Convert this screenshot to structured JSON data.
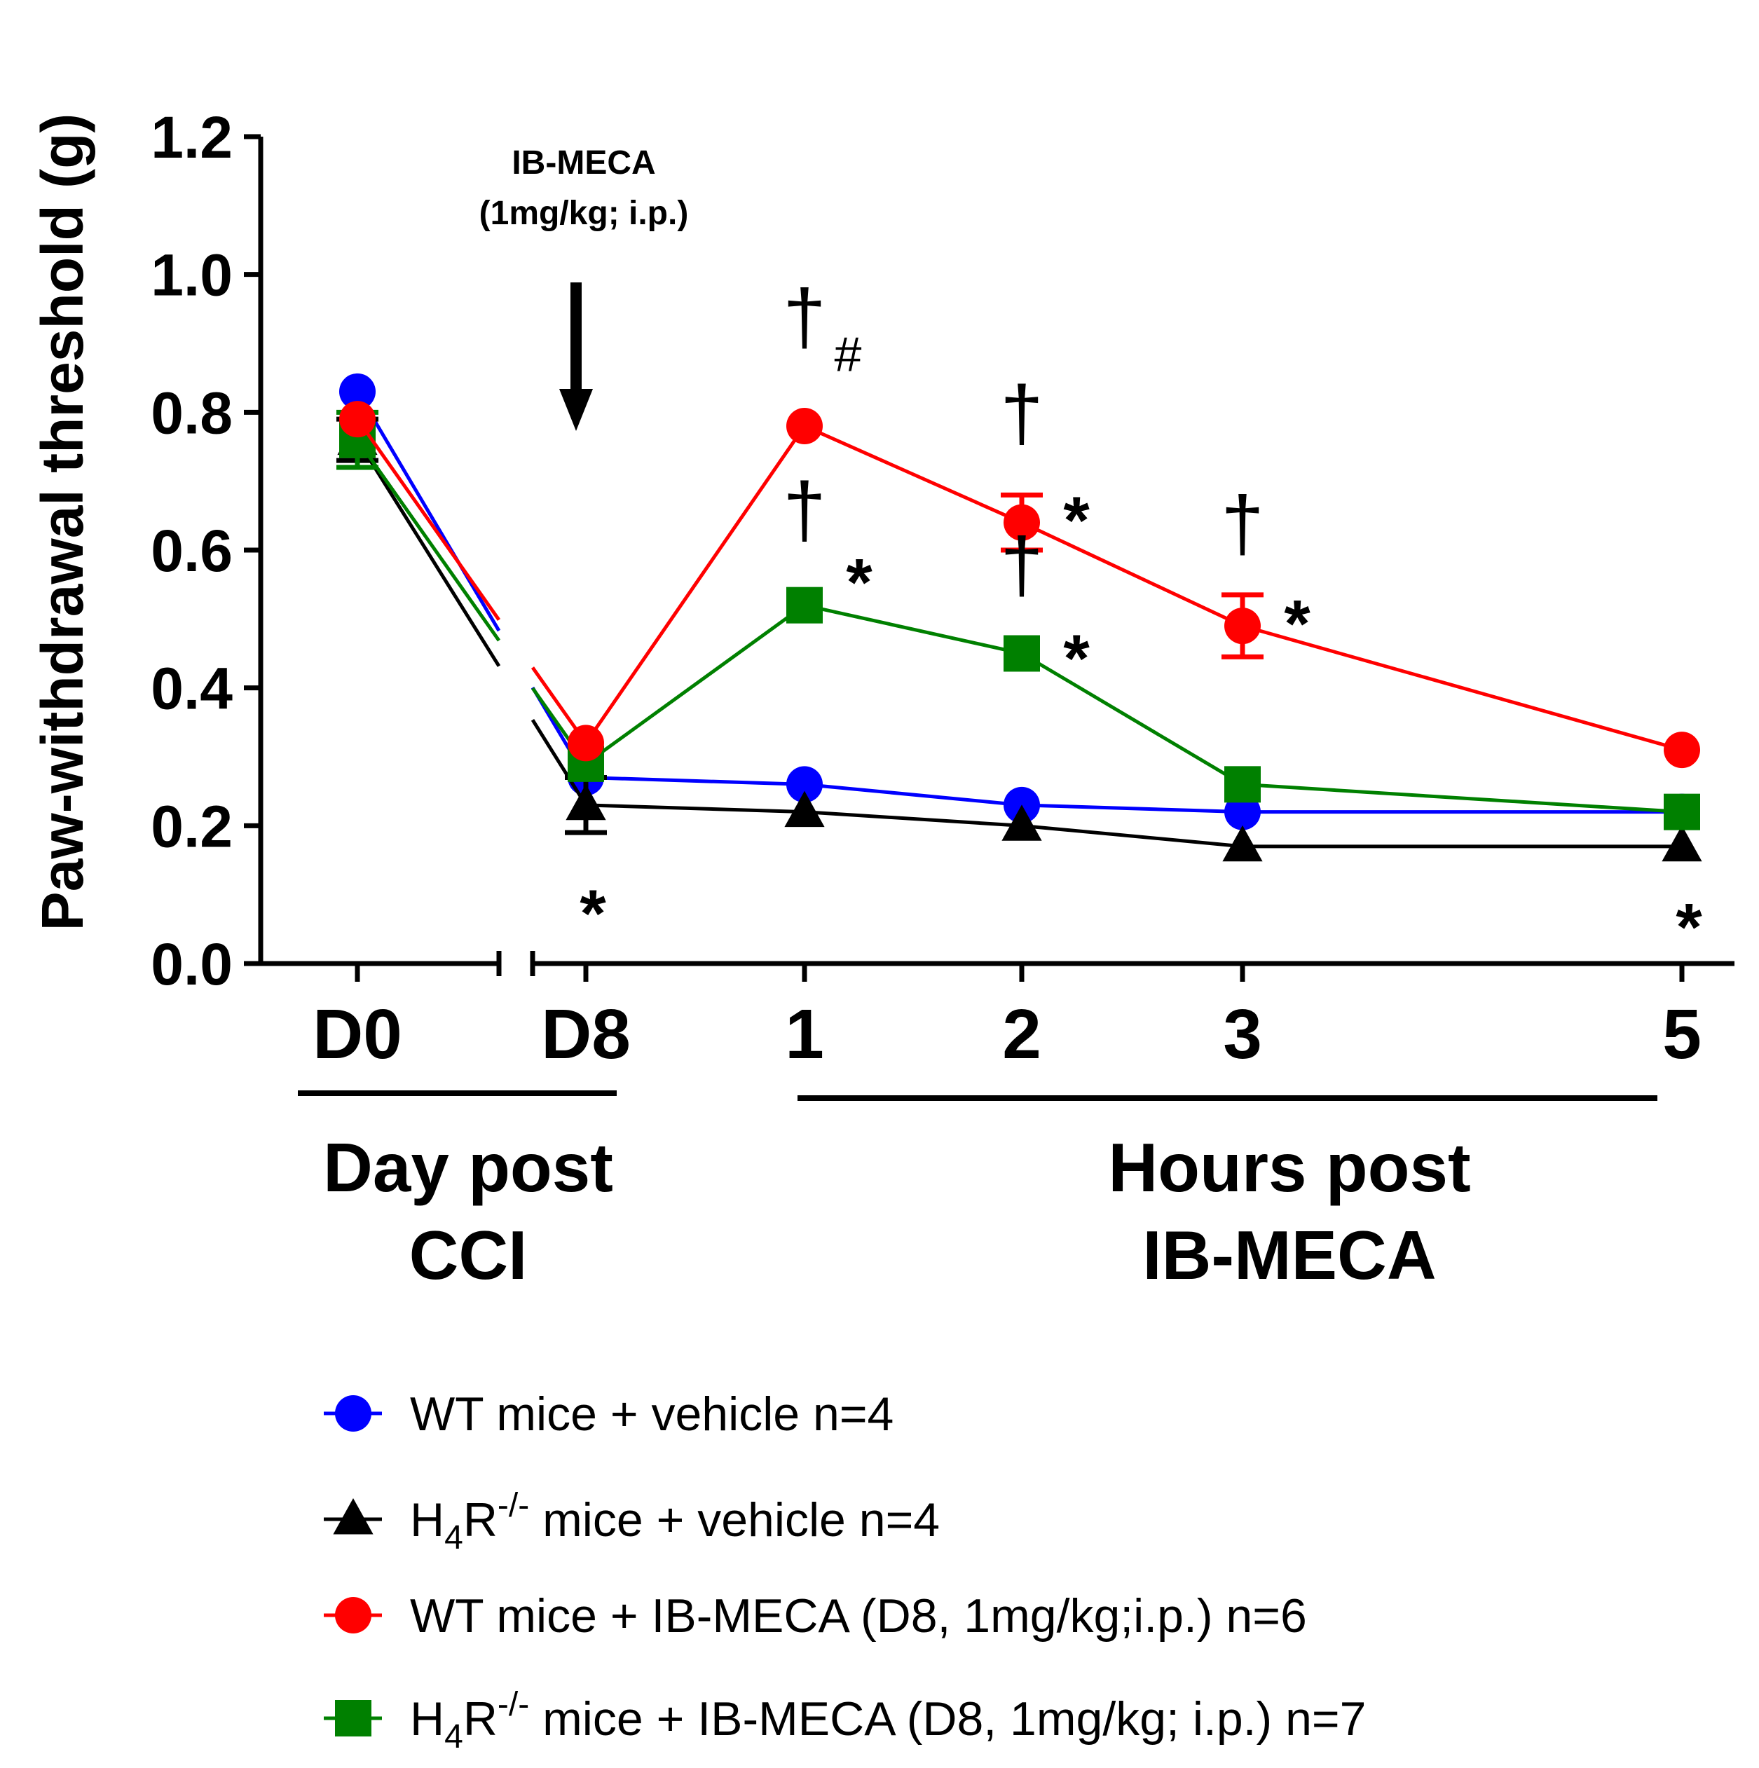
{
  "chart_data": {
    "type": "line",
    "title": "",
    "ylabel": "Paw-withdrawal threshold (g)",
    "ylim": [
      0,
      1.2
    ],
    "yticks": [
      "0.0",
      "0.2",
      "0.4",
      "0.6",
      "0.8",
      "1.0",
      "1.2"
    ],
    "categories": [
      "D0",
      "D8",
      "1",
      "2",
      "3",
      "5"
    ],
    "group_labels": {
      "day": [
        "Day post",
        "CCI"
      ],
      "hours": [
        "Hours post",
        "IB-MECA"
      ]
    },
    "arrow_annotation": [
      "IB-MECA",
      "(1mg/kg; i.p.)"
    ],
    "series": [
      {
        "name": "WT mice + vehicle n=4",
        "legend": {
          "pre": "WT mice + vehicle n=4",
          "sub": "",
          "sup": "",
          "post": ""
        },
        "color": "#0000ff",
        "marker": "circle",
        "values": [
          0.83,
          0.27,
          0.26,
          0.23,
          0.22,
          0.22
        ],
        "errors": [
          0.0,
          0.0,
          0.0,
          0.0,
          0.0,
          0.0
        ]
      },
      {
        "name": "H4R-/- mice + vehicle n=4",
        "legend": {
          "pre": "H",
          "sub": "4",
          "mid": "R",
          "sup": "-/-",
          "post": " mice + vehicle n=4"
        },
        "color": "#000000",
        "marker": "triangle",
        "values": [
          0.76,
          0.23,
          0.22,
          0.2,
          0.17,
          0.17
        ],
        "errors": [
          0.03,
          0.04,
          0.0,
          0.0,
          0.0,
          0.0
        ]
      },
      {
        "name": "WT mice + IB-MECA (D8, 1mg/kg;i.p.) n=6",
        "legend": {
          "pre": "WT mice + IB-MECA (D8, 1mg/kg;i.p.) n=6",
          "sub": "",
          "sup": "",
          "post": ""
        },
        "color": "#ff0000",
        "marker": "circle",
        "values": [
          0.79,
          0.32,
          0.78,
          0.64,
          0.49,
          0.31
        ],
        "errors": [
          0.0,
          0.0,
          0.0,
          0.04,
          0.045,
          0.0
        ]
      },
      {
        "name": "H4R-/- mice + IB-MECA (D8, 1mg/kg; i.p.) n=7",
        "legend": {
          "pre": "H",
          "sub": "4",
          "mid": "R",
          "sup": "-/-",
          "post": " mice + IB-MECA (D8, 1mg/kg; i.p.) n=7"
        },
        "color": "#008000",
        "marker": "square",
        "values": [
          0.76,
          0.29,
          0.52,
          0.45,
          0.26,
          0.22
        ],
        "errors": [
          0.04,
          0.0,
          0.0,
          0.0,
          0.0,
          0.0
        ]
      }
    ],
    "annotations": [
      {
        "text": "†",
        "x": "1",
        "y": 0.9,
        "kind": "dagger"
      },
      {
        "text": "#",
        "x": "1",
        "y": 0.86,
        "kind": "hash"
      },
      {
        "text": "†",
        "x": "2",
        "y": 0.76,
        "kind": "dagger"
      },
      {
        "text": "*",
        "x": "2",
        "y": 0.64,
        "kind": "sig"
      },
      {
        "text": "†",
        "x": "1",
        "y": 0.62,
        "kind": "dagger"
      },
      {
        "text": "*",
        "x": "1",
        "y": 0.55,
        "kind": "sig"
      },
      {
        "text": "†",
        "x": "2",
        "y": 0.54,
        "kind": "dagger"
      },
      {
        "text": "*",
        "x": "2",
        "y": 0.44,
        "kind": "sig"
      },
      {
        "text": "†",
        "x": "3",
        "y": 0.6,
        "kind": "dagger"
      },
      {
        "text": "*",
        "x": "3",
        "y": 0.49,
        "kind": "sig"
      },
      {
        "text": "*",
        "x": "D8",
        "y": 0.08,
        "kind": "sig"
      },
      {
        "text": "*",
        "x": "5",
        "y": 0.06,
        "kind": "sig"
      }
    ]
  }
}
